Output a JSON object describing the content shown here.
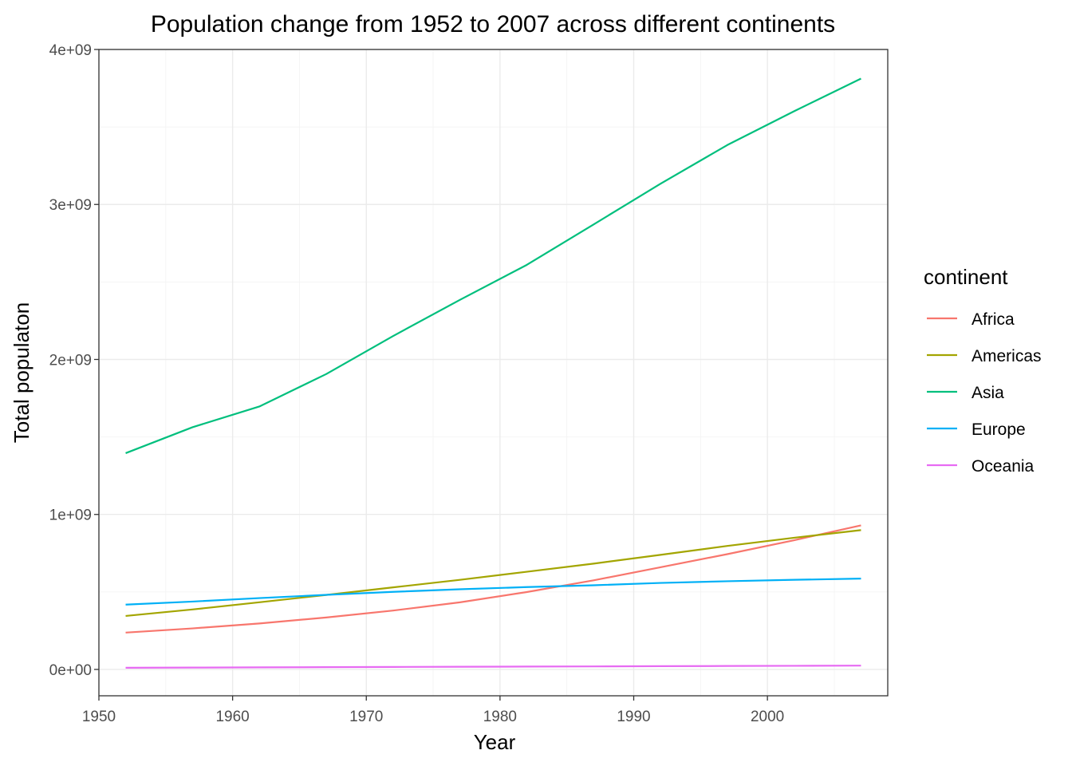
{
  "chart_data": {
    "type": "line",
    "title": "Population change from 1952 to 2007 across different continents",
    "xlabel": "Year",
    "ylabel": "Total populaton",
    "xlim": [
      1950,
      2009
    ],
    "ylim": [
      -170000000,
      4000000000
    ],
    "x_ticks": [
      1950,
      1960,
      1970,
      1980,
      1990,
      2000
    ],
    "x_tick_labels": [
      "1950",
      "1960",
      "1970",
      "1980",
      "1990",
      "2000"
    ],
    "y_ticks": [
      0,
      1000000000,
      2000000000,
      3000000000,
      4000000000
    ],
    "y_tick_labels": [
      "0e+00",
      "1e+09",
      "2e+09",
      "3e+09",
      "4e+09"
    ],
    "grid": true,
    "legend": {
      "title": "continent",
      "position": "right"
    },
    "x": [
      1952,
      1957,
      1962,
      1967,
      1972,
      1977,
      1982,
      1987,
      1992,
      1997,
      2002,
      2007
    ],
    "series": [
      {
        "name": "Africa",
        "color": "#F8766D",
        "values": [
          237640501,
          264837738,
          296516865,
          335289489,
          379879541,
          433061021,
          499348587,
          574834110,
          659081517,
          743832984,
          833723916,
          929539692
        ]
      },
      {
        "name": "Americas",
        "color": "#A3A500",
        "values": [
          345152446,
          386953916,
          433270254,
          480746623,
          529384210,
          578067699,
          630290920,
          682753971,
          739274104,
          796900410,
          849772762,
          898871184
        ]
      },
      {
        "name": "Asia",
        "color": "#00BF7D",
        "values": [
          1395357352,
          1562780599,
          1696357182,
          1905662900,
          2150972248,
          2384513556,
          2610135582,
          2871220762,
          3133292191,
          3383285500,
          3601802203,
          3811953827
        ]
      },
      {
        "name": "Europe",
        "color": "#00B0F6",
        "values": [
          418120846,
          437890351,
          460355155,
          481178958,
          500635059,
          517164531,
          531266901,
          543094160,
          558142797,
          568944148,
          578223869,
          586098529
        ]
      },
      {
        "name": "Oceania",
        "color": "#E76BF3",
        "values": [
          10686006,
          11941976,
          13283518,
          14600414,
          16106100,
          17239000,
          18394850,
          19574415,
          20919651,
          22241430,
          23454829,
          24549947
        ]
      }
    ]
  }
}
